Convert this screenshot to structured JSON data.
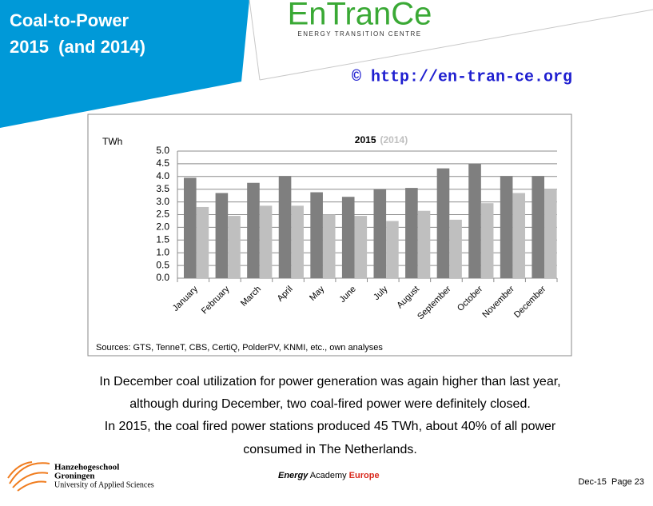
{
  "slide": {
    "title_lines": [
      "Coal-to-Power",
      "2015  (and 2014)"
    ],
    "logo": "EnTranCe",
    "logo_subtitle": "ENERGY TRANSITION CENTRE",
    "copyright": "© http://en-tran-ce.org",
    "body_lines": [
      "In December coal utilization for power generation was again higher than last year,",
      "although during December, two coal-fired power were definitely closed.",
      "In 2015, the coal fired power stations produced 45 TWh, about 40% of all power",
      "consumed in The Netherlands."
    ],
    "school_lines": [
      "Hanzehogeschool",
      "Groningen",
      "University of Applied Sciences"
    ],
    "academy": [
      "Energy",
      "Academy",
      "Europe"
    ],
    "page": "Dec-15  Page 23"
  },
  "chart_data": {
    "type": "bar",
    "y_label": "TWh",
    "source": "Sources: GTS, TenneT, CBS, CertiQ, PolderPV, KNMI, etc., own analyses",
    "categories": [
      "January",
      "February",
      "March",
      "April",
      "May",
      "June",
      "July",
      "August",
      "September",
      "October",
      "November",
      "December"
    ],
    "series": [
      {
        "name": "2015",
        "color": "#7f7f7f",
        "values": [
          3.95,
          3.35,
          3.75,
          4.02,
          3.38,
          3.2,
          3.5,
          3.55,
          4.32,
          4.5,
          4.02,
          4.02
        ]
      },
      {
        "name": "(2014)",
        "color": "#bfbfbf",
        "values": [
          2.8,
          2.45,
          2.85,
          2.85,
          2.5,
          2.45,
          2.25,
          2.65,
          2.3,
          2.95,
          3.35,
          3.5
        ]
      }
    ],
    "ylim": [
      0,
      5
    ],
    "yticks": [
      {
        "value": 0,
        "label": "0.0"
      },
      0.5,
      {
        "value": 1,
        "label": "1.0"
      },
      1.5,
      {
        "value": 2,
        "label": "2.0"
      },
      2.5,
      {
        "value": 3,
        "label": "3.0"
      },
      3.5,
      {
        "value": 4,
        "label": "4.0"
      },
      4.5,
      {
        "value": 5,
        "label": "5.0"
      }
    ],
    "grid": true
  }
}
